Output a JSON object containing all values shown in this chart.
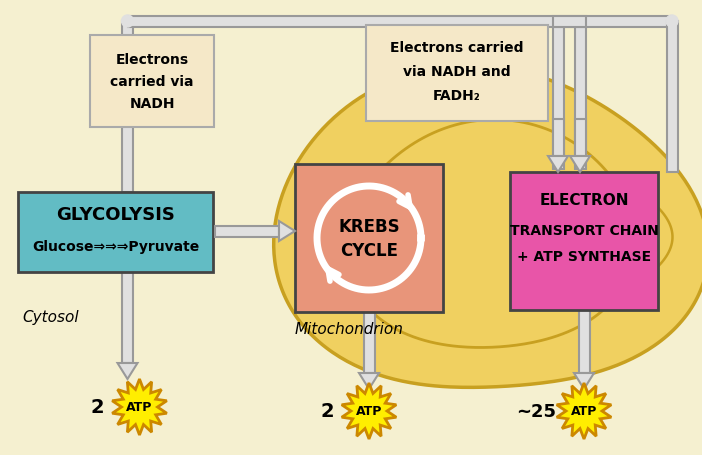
{
  "bg_color": "#f5f0d0",
  "mito_outer_color": "#f0d060",
  "mito_edge_color": "#c8a020",
  "glycolysis_color": "#62bcc4",
  "krebs_color": "#e8957a",
  "etc_color": "#e855a8",
  "nadh_box_color": "#f5e8c8",
  "nadh_box_edge": "#aaaaaa",
  "atp_color": "#ffee00",
  "atp_edge": "#cc8800",
  "arrow_fc": "#e8e8e8",
  "arrow_ec": "#999999",
  "pipe_fc": "#e0e0e0",
  "pipe_ec": "#999999",
  "text_color": "#000000",
  "glycolysis_line1": "GLYCOLYSIS",
  "glycolysis_line2": "Glucose⇒⇒⇒Pyruvate",
  "krebs_line1": "KREBS",
  "krebs_line2": "CYCLE",
  "etc_line1": "ELECTRON",
  "etc_line2": "TRANSPORT CHAIN",
  "etc_line3": "+ ATP SYNTHASE",
  "nadh_l_lines": [
    "Electrons",
    "carried via",
    "NADH"
  ],
  "nadh_r_lines": [
    "Electrons carried",
    "via NADH and",
    "FADH₂"
  ],
  "cytosol_text": "Cytosol",
  "mito_text": "Mitochondrion",
  "atp_labels": [
    "2",
    "2",
    "~25"
  ],
  "atp_text": "ATP",
  "fig_w": 7.02,
  "fig_h": 4.56,
  "dpi": 100
}
